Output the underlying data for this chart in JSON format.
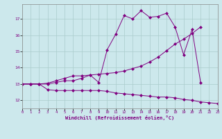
{
  "xlabel": "Windchill (Refroidissement éolien,°C)",
  "background_color": "#cce8ec",
  "line_color": "#800080",
  "grid_color": "#aacccc",
  "hours": [
    0,
    1,
    2,
    3,
    4,
    5,
    6,
    7,
    8,
    9,
    10,
    11,
    12,
    13,
    14,
    15,
    16,
    17,
    18,
    19,
    20,
    21,
    22,
    23
  ],
  "series1": [
    13.0,
    13.0,
    13.0,
    13.0,
    13.1,
    13.2,
    13.2,
    13.35,
    13.55,
    13.1,
    15.1,
    16.05,
    17.2,
    17.0,
    17.5,
    17.1,
    17.15,
    17.35,
    16.5,
    14.8,
    16.35,
    13.1,
    null,
    null
  ],
  "series2": [
    13.0,
    13.0,
    13.0,
    13.05,
    13.2,
    13.35,
    13.5,
    13.5,
    13.55,
    13.6,
    13.65,
    13.7,
    13.8,
    13.95,
    14.1,
    14.35,
    14.65,
    15.05,
    15.45,
    15.75,
    16.1,
    16.5,
    null,
    null
  ],
  "series3": [
    13.0,
    13.0,
    13.0,
    12.65,
    12.6,
    12.6,
    12.6,
    12.6,
    12.6,
    12.6,
    12.55,
    12.45,
    12.4,
    12.35,
    12.3,
    12.25,
    12.2,
    12.2,
    12.15,
    12.05,
    12.0,
    11.9,
    11.85,
    11.8
  ],
  "ylim": [
    11.5,
    17.9
  ],
  "yticks": [
    12,
    13,
    14,
    15,
    16,
    17
  ],
  "xlim": [
    0,
    23
  ],
  "xticks": [
    0,
    1,
    2,
    3,
    4,
    5,
    6,
    7,
    8,
    9,
    10,
    11,
    12,
    13,
    14,
    15,
    16,
    17,
    18,
    19,
    20,
    21,
    22,
    23
  ]
}
